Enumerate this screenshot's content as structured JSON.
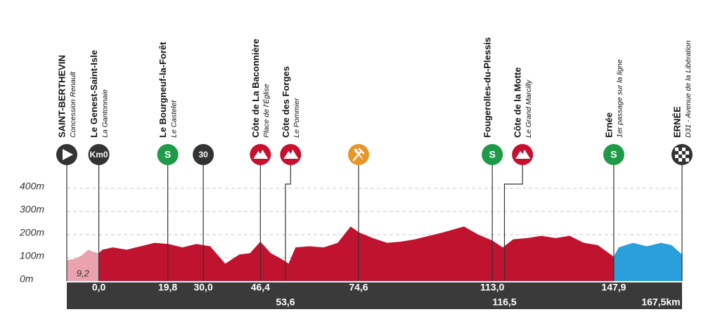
{
  "chart_data": {
    "type": "profile",
    "xlim": [
      -9.2,
      167.5
    ],
    "ylim": [
      0,
      400
    ],
    "yticks": [
      {
        "value": 0,
        "label": "0m"
      },
      {
        "value": 100,
        "label": "100m"
      },
      {
        "value": 200,
        "label": "200m"
      },
      {
        "value": 300,
        "label": "300m"
      },
      {
        "value": 400,
        "label": "400m"
      }
    ],
    "grid": true,
    "xticks": [
      {
        "value": 0,
        "label": "0,0"
      },
      {
        "value": 19.8,
        "label": "19,8"
      },
      {
        "value": 30,
        "label": "30,0"
      },
      {
        "value": 46.4,
        "label": "46,4"
      },
      {
        "value": 53.6,
        "label": "53,6"
      },
      {
        "value": 74.6,
        "label": "74,6"
      },
      {
        "value": 113,
        "label": "113,0"
      },
      {
        "value": 116.5,
        "label": "116,5"
      },
      {
        "value": 147.9,
        "label": "147,9"
      },
      {
        "value": 167.5,
        "label": "167,5km"
      }
    ],
    "neutral_label": {
      "value": 9.2,
      "label": "9,2"
    },
    "series": [
      {
        "color": "#e9a2ae",
        "x": [
          -9.2,
          -7,
          -5,
          -3,
          -1.5,
          0
        ],
        "values": [
          90,
          95,
          110,
          135,
          125,
          120
        ]
      },
      {
        "color": "#c0132f",
        "x": [
          0,
          1,
          4,
          8,
          12,
          16,
          20,
          24,
          28,
          32,
          36.3,
          40.4,
          43.4,
          46.4,
          49.4,
          52.5,
          54.5,
          56.5,
          60.5,
          64.6,
          68.6,
          72.3,
          74.7,
          78.7,
          82.8,
          86.8,
          90.8,
          94.9,
          98.9,
          104.9,
          109,
          113,
          116,
          119,
          123,
          127.1,
          131.2,
          135.2,
          139.3,
          143.3,
          147.9
        ],
        "values": [
          120,
          135,
          145,
          135,
          150,
          165,
          160,
          145,
          160,
          150,
          75,
          115,
          120,
          170,
          120,
          95,
          75,
          145,
          150,
          145,
          165,
          235,
          210,
          185,
          165,
          170,
          180,
          195,
          210,
          235,
          200,
          175,
          145,
          180,
          185,
          195,
          185,
          195,
          165,
          155,
          105
        ]
      },
      {
        "color": "#2a9fdc",
        "x": [
          147.9,
          149.3,
          153.4,
          157.4,
          161.5,
          164.5,
          167.5
        ],
        "values": [
          105,
          145,
          165,
          150,
          165,
          155,
          115
        ]
      }
    ],
    "points": [
      {
        "km": -9.2,
        "icon": "start",
        "color": "#333333",
        "name": "SAINT-BERTHEVIN",
        "sub": "Concession Renault"
      },
      {
        "km": 0,
        "icon": "text",
        "icon_text": "Km0",
        "color": "#333333",
        "name": "Le Genest-Saint-Isle",
        "sub": "La Gantonnaie"
      },
      {
        "km": 19.8,
        "icon": "text",
        "icon_text": "S",
        "color": "#1f9a48",
        "name": "Le Bourgneuf-la-Forêt",
        "sub": "Le Castelet"
      },
      {
        "km": 30,
        "icon": "text",
        "icon_text": "30",
        "color": "#333333"
      },
      {
        "km": 46.4,
        "icon": "climb",
        "color": "#c8102e",
        "name": "Côte de La Baconnière",
        "sub": "Place de l'Église"
      },
      {
        "km": 53.6,
        "icon": "climb",
        "color": "#c8102e",
        "name": "Côte des Forges",
        "sub": "Le Pommier"
      },
      {
        "km": 74.6,
        "icon": "feed",
        "color": "#e8962a"
      },
      {
        "km": 113,
        "icon": "text",
        "icon_text": "S",
        "color": "#1f9a48",
        "name": "Fougerolles-du-Plessis"
      },
      {
        "km": 116.5,
        "icon": "climb",
        "color": "#c8102e",
        "name": "Côte de la Motte",
        "sub": "Le Grand Marcilly"
      },
      {
        "km": 147.9,
        "icon": "text",
        "icon_text": "S",
        "color": "#1f9a48",
        "name": "Ernée",
        "sub": "1er passage sur la ligne"
      },
      {
        "km": 167.5,
        "icon": "finish",
        "color": "#333333",
        "name": "ERNÉE",
        "sub": "D31 - Avenue de la Libération"
      }
    ]
  }
}
